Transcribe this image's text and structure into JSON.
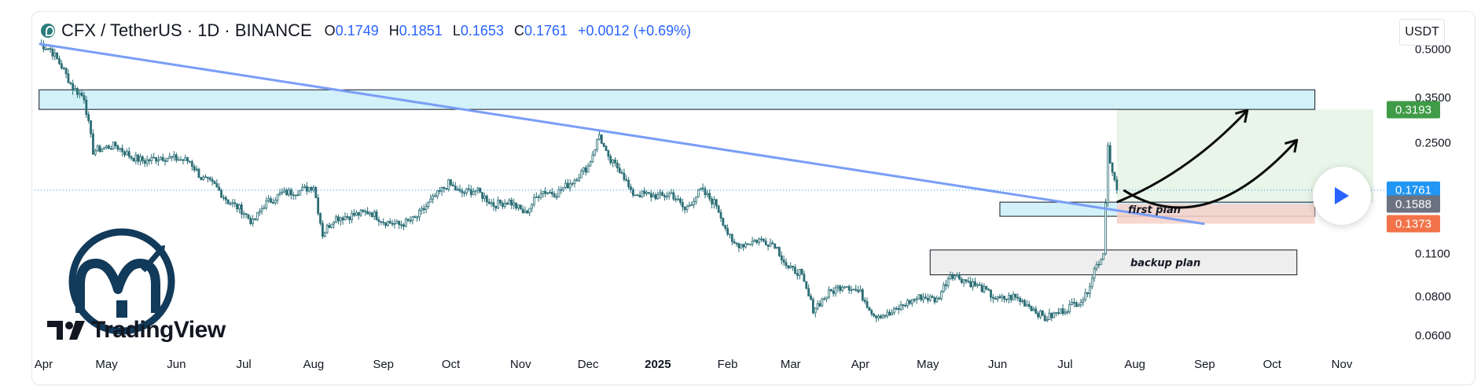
{
  "header": {
    "symbol": "CFX / TetherUS · 1D · BINANCE",
    "open_label": "O",
    "open_value": "0.1749",
    "high_label": "H",
    "high_value": "0.1851",
    "low_label": "L",
    "low_value": "0.1653",
    "close_label": "C",
    "close_value": "0.1761",
    "change": "+0.0012 (+0.69%)"
  },
  "currency_button": "USDT",
  "watermark": {
    "text": "TradingView"
  },
  "colors": {
    "accent": "#2962ff",
    "candle": "#2a6d74",
    "trendline": "#7a9ef7",
    "resistance_zone": "#cdeff7",
    "support_zone": "#f6d1c8",
    "target_zone": "#e6f4e6",
    "price_last": "#2196f3",
    "price_mid": "#6b7280",
    "price_low": "#f27349",
    "price_target": "#3f9b48"
  },
  "chart_data": {
    "type": "candlestick",
    "axis": {
      "price_scale": "log",
      "ylim": [
        0.0555,
        0.57
      ],
      "y_ticks": [
        "0.5000",
        "0.3500",
        "0.2500",
        "0.1100",
        "0.0800",
        "0.0600"
      ],
      "x_ticks": [
        "Apr",
        "May",
        "Jun",
        "Jul",
        "Aug",
        "Sep",
        "Oct",
        "Nov",
        "Dec",
        "2025",
        "Feb",
        "Mar",
        "Apr",
        "May",
        "Jun",
        "Jul",
        "Aug",
        "Sep",
        "Oct",
        "Nov"
      ],
      "grid": false
    },
    "price_labels": [
      {
        "value": "0.3193",
        "price": 0.3193,
        "color": "#3f9b48"
      },
      {
        "value": "0.1761",
        "price": 0.1761,
        "color": "#2196f3"
      },
      {
        "value": "0.1588",
        "price": 0.1588,
        "color": "#6b7280"
      },
      {
        "value": "0.1373",
        "price": 0.1373,
        "color": "#f27349"
      }
    ],
    "anchors": [
      [
        "2024-04-01",
        0.52
      ],
      [
        "2024-04-06",
        0.5
      ],
      [
        "2024-04-11",
        0.44
      ],
      [
        "2024-04-16",
        0.375
      ],
      [
        "2024-04-21",
        0.35
      ],
      [
        "2024-04-25",
        0.235
      ],
      [
        "2024-04-29",
        0.24
      ],
      [
        "2024-05-05",
        0.245
      ],
      [
        "2024-05-12",
        0.225
      ],
      [
        "2024-05-18",
        0.218
      ],
      [
        "2024-05-25",
        0.225
      ],
      [
        "2024-06-01",
        0.222
      ],
      [
        "2024-06-07",
        0.218
      ],
      [
        "2024-06-12",
        0.193
      ],
      [
        "2024-06-18",
        0.182
      ],
      [
        "2024-06-24",
        0.162
      ],
      [
        "2024-06-30",
        0.152
      ],
      [
        "2024-07-05",
        0.138
      ],
      [
        "2024-07-10",
        0.158
      ],
      [
        "2024-07-18",
        0.172
      ],
      [
        "2024-07-26",
        0.175
      ],
      [
        "2024-08-01",
        0.182
      ],
      [
        "2024-08-05",
        0.127
      ],
      [
        "2024-08-10",
        0.143
      ],
      [
        "2024-08-18",
        0.146
      ],
      [
        "2024-08-26",
        0.15
      ],
      [
        "2024-09-01",
        0.14
      ],
      [
        "2024-09-08",
        0.136
      ],
      [
        "2024-09-15",
        0.142
      ],
      [
        "2024-09-22",
        0.162
      ],
      [
        "2024-09-30",
        0.185
      ],
      [
        "2024-10-05",
        0.172
      ],
      [
        "2024-10-12",
        0.176
      ],
      [
        "2024-10-20",
        0.158
      ],
      [
        "2024-10-27",
        0.162
      ],
      [
        "2024-11-03",
        0.148
      ],
      [
        "2024-11-10",
        0.175
      ],
      [
        "2024-11-17",
        0.172
      ],
      [
        "2024-11-24",
        0.188
      ],
      [
        "2024-12-01",
        0.21
      ],
      [
        "2024-12-06",
        0.265
      ],
      [
        "2024-12-10",
        0.22
      ],
      [
        "2024-12-16",
        0.203
      ],
      [
        "2024-12-20",
        0.172
      ],
      [
        "2024-12-27",
        0.17
      ],
      [
        "2025-01-03",
        0.168
      ],
      [
        "2025-01-07",
        0.172
      ],
      [
        "2025-01-13",
        0.152
      ],
      [
        "2025-01-20",
        0.176
      ],
      [
        "2025-01-27",
        0.158
      ],
      [
        "2025-02-03",
        0.118
      ],
      [
        "2025-02-08",
        0.118
      ],
      [
        "2025-02-15",
        0.122
      ],
      [
        "2025-02-22",
        0.118
      ],
      [
        "2025-02-28",
        0.098
      ],
      [
        "2025-03-05",
        0.096
      ],
      [
        "2025-03-11",
        0.073
      ],
      [
        "2025-03-18",
        0.082
      ],
      [
        "2025-03-25",
        0.088
      ],
      [
        "2025-04-01",
        0.082
      ],
      [
        "2025-04-07",
        0.07
      ],
      [
        "2025-04-14",
        0.07
      ],
      [
        "2025-04-21",
        0.076
      ],
      [
        "2025-04-28",
        0.08
      ],
      [
        "2025-05-05",
        0.078
      ],
      [
        "2025-05-11",
        0.095
      ],
      [
        "2025-05-18",
        0.09
      ],
      [
        "2025-05-25",
        0.085
      ],
      [
        "2025-06-01",
        0.078
      ],
      [
        "2025-06-08",
        0.08
      ],
      [
        "2025-06-15",
        0.075
      ],
      [
        "2025-06-22",
        0.068
      ],
      [
        "2025-06-28",
        0.071
      ],
      [
        "2025-07-04",
        0.075
      ],
      [
        "2025-07-10",
        0.08
      ],
      [
        "2025-07-14",
        0.098
      ],
      [
        "2025-07-18",
        0.11
      ],
      [
        "2025-07-20",
        0.245
      ],
      [
        "2025-07-22",
        0.2
      ],
      [
        "2025-07-24",
        0.176
      ]
    ],
    "trendline": {
      "from": [
        "2024-04-01",
        0.52
      ],
      "to": [
        "2025-09-01",
        0.137
      ]
    },
    "zones": [
      {
        "name": "resistance",
        "label": "",
        "x0": "2024-04-01",
        "x1": "2025-10-20",
        "y0": 0.32,
        "y1": 0.37
      },
      {
        "name": "first_plan",
        "label": "first plan",
        "x0": "2025-06-02",
        "x1": "2025-10-20",
        "y0": 0.145,
        "y1": 0.161
      },
      {
        "name": "backup_plan",
        "label": "backup plan",
        "x0": "2025-05-02",
        "x1": "2025-10-12",
        "y0": 0.094,
        "y1": 0.113
      },
      {
        "name": "target",
        "label": "",
        "x0": "2025-07-24",
        "x1": "2025-11-15",
        "y0": 0.16,
        "y1": 0.3193
      }
    ],
    "arrows": [
      {
        "name": "first-plan-arrow",
        "points": [
          [
            "2025-07-24",
            0.161
          ],
          [
            "2025-08-25",
            0.2
          ],
          [
            "2025-09-20",
            0.318
          ]
        ]
      },
      {
        "name": "backup-plan-arrow",
        "points": [
          [
            "2025-07-27",
            0.176
          ],
          [
            "2025-09-01",
            0.12
          ],
          [
            "2025-10-12",
            0.255
          ]
        ]
      }
    ]
  }
}
